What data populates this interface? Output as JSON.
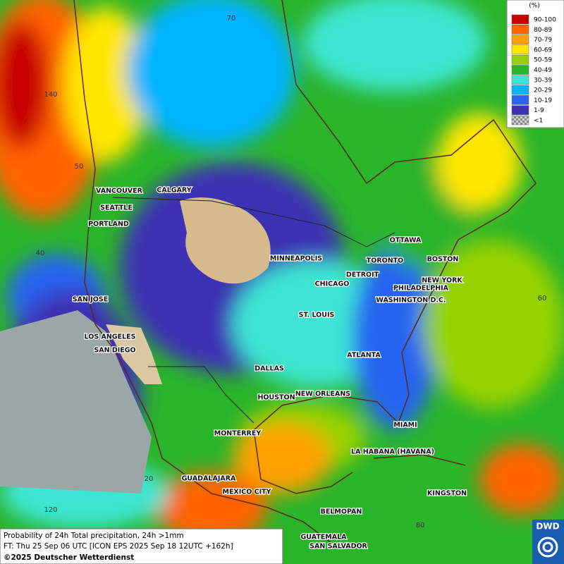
{
  "map": {
    "grid_labels": [
      "70",
      "140",
      "50",
      "40",
      "60",
      "20",
      "120",
      "80"
    ],
    "cities": [
      "VANCOUVER",
      "CALGARY",
      "SEATTLE",
      "PORTLAND",
      "MINNEAPOLIS",
      "OTTAWA",
      "TORONTO",
      "BOSTON",
      "DETROIT",
      "CHICAGO",
      "NEW YORK",
      "PHILADELPHIA",
      "SAN JOSE",
      "WASHINGTON D.C.",
      "ST. LOUIS",
      "LOS ANGELES",
      "SAN DIEGO",
      "ATLANTA",
      "DALLAS",
      "HOUSTON",
      "NEW ORLEANS",
      "MIAMI",
      "MONTERREY",
      "LA HABANA (HAVANA)",
      "GUADALAJARA",
      "MEXICO CITY",
      "KINGSTON",
      "BELMOPAN",
      "GUATEMALA",
      "SAN SALVADOR"
    ]
  },
  "legend": {
    "unit": "(%)",
    "items": [
      {
        "label": "90-100",
        "color": "#c80000"
      },
      {
        "label": "80-89",
        "color": "#ff6400"
      },
      {
        "label": "70-79",
        "color": "#ffa000"
      },
      {
        "label": "60-69",
        "color": "#ffe600"
      },
      {
        "label": "50-59",
        "color": "#96d200"
      },
      {
        "label": "40-49",
        "color": "#2ab42a"
      },
      {
        "label": "30-39",
        "color": "#3ce6d2"
      },
      {
        "label": "20-29",
        "color": "#00b4ff"
      },
      {
        "label": "10-19",
        "color": "#2864f0"
      },
      {
        "label": "1-9",
        "color": "#3c32b4"
      },
      {
        "label": "<1",
        "color": "#a0a0a0"
      }
    ]
  },
  "caption": {
    "line1": "Probability of 24h Total precipitation, 24h >1mm",
    "line2": "FT: Thu 25 Sep 06 UTC [ICON EPS 2025 Sep 18 12UTC +162h]",
    "copyright": "©2025 Deutscher Wetterdienst"
  },
  "logo": "DWD"
}
